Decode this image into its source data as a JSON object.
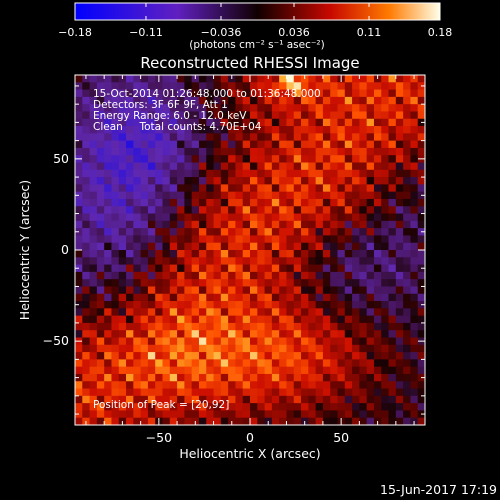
{
  "chart_data": {
    "type": "heatmap",
    "title": "Reconstructed RHESSI Image",
    "xlabel": "Heliocentric X (arcsec)",
    "ylabel": "Heliocentric Y (arcsec)",
    "xlim": [
      -96,
      96
    ],
    "ylim": [
      -96,
      96
    ],
    "xticks": [
      -50,
      0,
      50
    ],
    "yticks": [
      50,
      0,
      -50
    ],
    "xtick_labels": [
      "−50",
      "0",
      "50"
    ],
    "ytick_labels": [
      "50",
      "0",
      "−50"
    ],
    "colorbar": {
      "min": -0.18,
      "max": 0.18,
      "ticks": [
        -0.18,
        -0.11,
        -0.036,
        0.036,
        0.11,
        0.18
      ],
      "tick_labels": [
        "−0.18",
        "−0.11",
        "−0.036",
        "0.036",
        "0.11",
        "0.18"
      ],
      "unit_label": "(photons cm⁻² s⁻¹ asec⁻²)"
    },
    "annotations": [
      "15-Oct-2014 01:26:48.000 to 01:36:48.000",
      "Detectors: 3F 6F 9F, Att 1",
      "Energy Range: 6.0 - 12.0 keV",
      "Clean     Total counts: 4.70E+04"
    ],
    "peak_label": "Position of Peak = [20,92]",
    "peak_position": [
      20,
      92
    ],
    "grid": false
  },
  "footer": {
    "timestamp": "15-Jun-2017 17:19"
  },
  "colors": {
    "background": "#000000",
    "text": "#ffffff",
    "negative_low": "#0000ff",
    "negative_mid": "#6a2aa8",
    "neutral": "#2a0505",
    "positive_mid": "#d01000",
    "positive_high": "#ffe080",
    "peak": "#ffffff"
  }
}
